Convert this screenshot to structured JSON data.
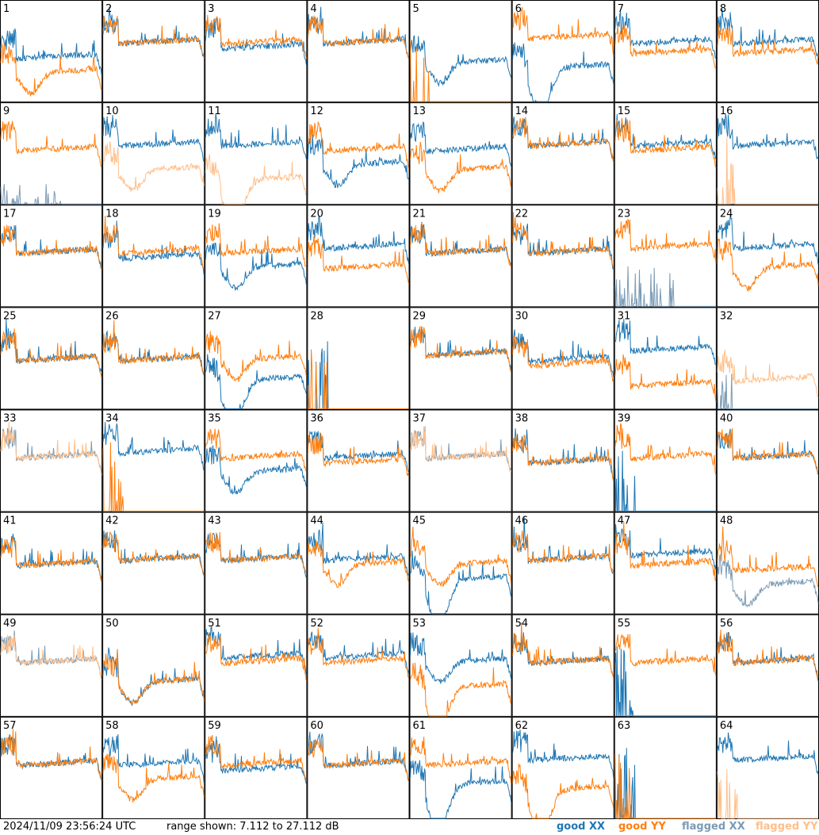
{
  "footer": {
    "timestamp": "2024/11/09 23:56:24 UTC",
    "range_text": "range shown: 7.112 to 27.112 dB"
  },
  "legend": [
    {
      "label": "good XX",
      "color": "#1f77b4"
    },
    {
      "label": "good YY",
      "color": "#ff7f0e"
    },
    {
      "label": "flagged XX",
      "color": "#7b9bb5"
    },
    {
      "label": "flagged YY",
      "color": "#ffbf8a"
    }
  ],
  "chart_data": {
    "type": "line",
    "title": "",
    "xlabel": "",
    "ylabel": "",
    "ylim": [
      7.112,
      27.112
    ],
    "unit": "dB",
    "grid": "8x8 small multiples",
    "series_names": [
      "good XX",
      "good YY",
      "flagged XX",
      "flagged YY"
    ],
    "panels": [
      {
        "id": "1",
        "xx": "good",
        "yy": "good",
        "xx_level": 16,
        "yy_level": 13,
        "xx_shape": "flat",
        "yy_shape": "dip"
      },
      {
        "id": "2",
        "xx": "good",
        "yy": "good",
        "xx_level": 19,
        "yy_level": 19,
        "xx_shape": "flat",
        "yy_shape": "flat"
      },
      {
        "id": "3",
        "xx": "good",
        "yy": "good",
        "xx_level": 18,
        "yy_level": 19,
        "xx_shape": "flat",
        "yy_shape": "flat"
      },
      {
        "id": "4",
        "xx": "good",
        "yy": "good",
        "xx_level": 19,
        "yy_level": 19,
        "xx_shape": "flat",
        "yy_shape": "flat"
      },
      {
        "id": "5",
        "xx": "good",
        "yy": "good",
        "xx_level": 15,
        "yy_level": 7.112,
        "xx_shape": "dip",
        "yy_shape": "dead"
      },
      {
        "id": "6",
        "xx": "good",
        "yy": "good",
        "xx_level": 14,
        "yy_level": 20,
        "xx_shape": "deepdip",
        "yy_shape": "flat"
      },
      {
        "id": "7",
        "xx": "good",
        "yy": "good",
        "xx_level": 19,
        "yy_level": 17,
        "xx_shape": "flat",
        "yy_shape": "flat"
      },
      {
        "id": "8",
        "xx": "good",
        "yy": "good",
        "xx_level": 19,
        "yy_level": 17,
        "xx_shape": "flat",
        "yy_shape": "flat"
      },
      {
        "id": "9",
        "xx": "flagged",
        "yy": "good",
        "xx_level": 7.112,
        "yy_level": 18,
        "xx_shape": "spiky",
        "yy_shape": "flat"
      },
      {
        "id": "10",
        "xx": "good",
        "yy": "flagged",
        "xx_level": 19,
        "yy_level": 14,
        "xx_shape": "flat",
        "yy_shape": "dip"
      },
      {
        "id": "11",
        "xx": "good",
        "yy": "flagged",
        "xx_level": 19,
        "yy_level": 12,
        "xx_shape": "flat",
        "yy_shape": "deepdip"
      },
      {
        "id": "12",
        "xx": "good",
        "yy": "good",
        "xx_level": 15,
        "yy_level": 18,
        "xx_shape": "dip",
        "yy_shape": "flat"
      },
      {
        "id": "13",
        "xx": "good",
        "yy": "good",
        "xx_level": 18,
        "yy_level": 14,
        "xx_shape": "flat",
        "yy_shape": "dip"
      },
      {
        "id": "14",
        "xx": "good",
        "yy": "good",
        "xx_level": 19,
        "yy_level": 19,
        "xx_shape": "flat",
        "yy_shape": "flat"
      },
      {
        "id": "15",
        "xx": "good",
        "yy": "good",
        "xx_level": 19,
        "yy_level": 18,
        "xx_shape": "flat",
        "yy_shape": "flat"
      },
      {
        "id": "16",
        "xx": "good",
        "yy": "flagged",
        "xx_level": 19,
        "yy_level": 7.112,
        "xx_shape": "flat",
        "yy_shape": "dead"
      },
      {
        "id": "17",
        "xx": "good",
        "yy": "good",
        "xx_level": 18,
        "yy_level": 18,
        "xx_shape": "flat",
        "yy_shape": "flat"
      },
      {
        "id": "18",
        "xx": "good",
        "yy": "good",
        "xx_level": 17,
        "yy_level": 18,
        "xx_shape": "flat",
        "yy_shape": "flat"
      },
      {
        "id": "19",
        "xx": "good",
        "yy": "good",
        "xx_level": 15,
        "yy_level": 18,
        "xx_shape": "dip",
        "yy_shape": "flat"
      },
      {
        "id": "20",
        "xx": "good",
        "yy": "good",
        "xx_level": 19,
        "yy_level": 15,
        "xx_shape": "flat",
        "yy_shape": "flat"
      },
      {
        "id": "21",
        "xx": "good",
        "yy": "good",
        "xx_level": 18,
        "yy_level": 18,
        "xx_shape": "flat",
        "yy_shape": "flat"
      },
      {
        "id": "22",
        "xx": "good",
        "yy": "good",
        "xx_level": 18,
        "yy_level": 18,
        "xx_shape": "flat",
        "yy_shape": "flat"
      },
      {
        "id": "23",
        "xx": "flagged",
        "yy": "good",
        "xx_level": 12,
        "yy_level": 19,
        "xx_shape": "spiky",
        "yy_shape": "flat"
      },
      {
        "id": "24",
        "xx": "good",
        "yy": "good",
        "xx_level": 19,
        "yy_level": 15,
        "xx_shape": "flat",
        "yy_shape": "dip"
      },
      {
        "id": "25",
        "xx": "good",
        "yy": "good",
        "xx_level": 17,
        "yy_level": 17,
        "xx_shape": "flat",
        "yy_shape": "flat"
      },
      {
        "id": "26",
        "xx": "good",
        "yy": "good",
        "xx_level": 17,
        "yy_level": 17,
        "xx_shape": "flat",
        "yy_shape": "flat"
      },
      {
        "id": "27",
        "xx": "good",
        "yy": "good",
        "xx_level": 13,
        "yy_level": 17,
        "xx_shape": "deepdip",
        "yy_shape": "dip"
      },
      {
        "id": "28",
        "xx": "good",
        "yy": "good",
        "xx_level": 7.112,
        "yy_level": 7.112,
        "xx_shape": "dead",
        "yy_shape": "dead"
      },
      {
        "id": "29",
        "xx": "good",
        "yy": "good",
        "xx_level": 18,
        "yy_level": 18,
        "xx_shape": "flat",
        "yy_shape": "flat"
      },
      {
        "id": "30",
        "xx": "good",
        "yy": "good",
        "xx_level": 17,
        "yy_level": 16,
        "xx_shape": "flat",
        "yy_shape": "flat"
      },
      {
        "id": "31",
        "xx": "good",
        "yy": "good",
        "xx_level": 19,
        "yy_level": 12,
        "xx_shape": "flat",
        "yy_shape": "flat"
      },
      {
        "id": "32",
        "xx": "flagged",
        "yy": "flagged",
        "xx_level": 7.112,
        "yy_level": 13,
        "xx_shape": "dead",
        "yy_shape": "flat"
      },
      {
        "id": "33",
        "xx": "flagged",
        "yy": "flagged",
        "xx_level": 18,
        "yy_level": 18,
        "xx_shape": "flat",
        "yy_shape": "flat"
      },
      {
        "id": "34",
        "xx": "good",
        "yy": "good",
        "xx_level": 19,
        "yy_level": 7.112,
        "xx_shape": "flat",
        "yy_shape": "dead"
      },
      {
        "id": "35",
        "xx": "good",
        "yy": "good",
        "xx_level": 15,
        "yy_level": 18,
        "xx_shape": "dip",
        "yy_shape": "flat"
      },
      {
        "id": "36",
        "xx": "good",
        "yy": "good",
        "xx_level": 18,
        "yy_level": 17,
        "xx_shape": "flat",
        "yy_shape": "flat"
      },
      {
        "id": "37",
        "xx": "flagged",
        "yy": "flagged",
        "xx_level": 18,
        "yy_level": 18,
        "xx_shape": "flat",
        "yy_shape": "flat"
      },
      {
        "id": "38",
        "xx": "good",
        "yy": "good",
        "xx_level": 17,
        "yy_level": 17,
        "xx_shape": "flat",
        "yy_shape": "flat"
      },
      {
        "id": "39",
        "xx": "good",
        "yy": "good",
        "xx_level": 7.112,
        "yy_level": 18,
        "xx_shape": "dead",
        "yy_shape": "flat"
      },
      {
        "id": "40",
        "xx": "good",
        "yy": "good",
        "xx_level": 18,
        "yy_level": 18,
        "xx_shape": "flat",
        "yy_shape": "flat"
      },
      {
        "id": "41",
        "xx": "good",
        "yy": "good",
        "xx_level": 17,
        "yy_level": 17,
        "xx_shape": "flat",
        "yy_shape": "flat"
      },
      {
        "id": "42",
        "xx": "good",
        "yy": "good",
        "xx_level": 18,
        "yy_level": 18,
        "xx_shape": "flat",
        "yy_shape": "flat"
      },
      {
        "id": "43",
        "xx": "good",
        "yy": "good",
        "xx_level": 18,
        "yy_level": 18,
        "xx_shape": "flat",
        "yy_shape": "flat"
      },
      {
        "id": "44",
        "xx": "good",
        "yy": "good",
        "xx_level": 18,
        "yy_level": 17,
        "xx_shape": "flat",
        "yy_shape": "dip"
      },
      {
        "id": "45",
        "xx": "good",
        "yy": "good",
        "xx_level": 14,
        "yy_level": 17,
        "xx_shape": "deepdip",
        "yy_shape": "dip"
      },
      {
        "id": "46",
        "xx": "good",
        "yy": "good",
        "xx_level": 18,
        "yy_level": 18,
        "xx_shape": "flat",
        "yy_shape": "flat"
      },
      {
        "id": "47",
        "xx": "good",
        "yy": "good",
        "xx_level": 19,
        "yy_level": 17,
        "xx_shape": "flat",
        "yy_shape": "flat"
      },
      {
        "id": "48",
        "xx": "flagged",
        "yy": "good",
        "xx_level": 13,
        "yy_level": 16,
        "xx_shape": "dip",
        "yy_shape": "flat"
      },
      {
        "id": "49",
        "xx": "flagged",
        "yy": "flagged",
        "xx_level": 18,
        "yy_level": 18,
        "xx_shape": "flat",
        "yy_shape": "flat"
      },
      {
        "id": "50",
        "xx": "good",
        "yy": "good",
        "xx_level": 14,
        "yy_level": 14,
        "xx_shape": "dip",
        "yy_shape": "dip"
      },
      {
        "id": "51",
        "xx": "good",
        "yy": "good",
        "xx_level": 19,
        "yy_level": 18,
        "xx_shape": "flat",
        "yy_shape": "flat"
      },
      {
        "id": "52",
        "xx": "good",
        "yy": "good",
        "xx_level": 19,
        "yy_level": 18,
        "xx_shape": "flat",
        "yy_shape": "flat"
      },
      {
        "id": "53",
        "xx": "good",
        "yy": "good",
        "xx_level": 18,
        "yy_level": 13,
        "xx_shape": "dip",
        "yy_shape": "deepdip"
      },
      {
        "id": "54",
        "xx": "good",
        "yy": "good",
        "xx_level": 18,
        "yy_level": 18,
        "xx_shape": "flat",
        "yy_shape": "flat"
      },
      {
        "id": "55",
        "xx": "good",
        "yy": "good",
        "xx_level": 7.112,
        "yy_level": 18,
        "xx_shape": "dead",
        "yy_shape": "flat"
      },
      {
        "id": "56",
        "xx": "good",
        "yy": "good",
        "xx_level": 18,
        "yy_level": 18,
        "xx_shape": "flat",
        "yy_shape": "flat"
      },
      {
        "id": "57",
        "xx": "good",
        "yy": "good",
        "xx_level": 18,
        "yy_level": 18,
        "xx_shape": "flat",
        "yy_shape": "flat"
      },
      {
        "id": "58",
        "xx": "good",
        "yy": "good",
        "xx_level": 18,
        "yy_level": 15,
        "xx_shape": "flat",
        "yy_shape": "dip"
      },
      {
        "id": "59",
        "xx": "good",
        "yy": "good",
        "xx_level": 17,
        "yy_level": 18,
        "xx_shape": "flat",
        "yy_shape": "flat"
      },
      {
        "id": "60",
        "xx": "good",
        "yy": "good",
        "xx_level": 18,
        "yy_level": 18,
        "xx_shape": "flat",
        "yy_shape": "flat"
      },
      {
        "id": "61",
        "xx": "good",
        "yy": "good",
        "xx_level": 14,
        "yy_level": 18,
        "xx_shape": "deepdip",
        "yy_shape": "flat"
      },
      {
        "id": "62",
        "xx": "good",
        "yy": "good",
        "xx_level": 19,
        "yy_level": 13,
        "xx_shape": "flat",
        "yy_shape": "deepdip"
      },
      {
        "id": "63",
        "xx": "good",
        "yy": "good",
        "xx_level": 7.112,
        "yy_level": 7.112,
        "xx_shape": "dead",
        "yy_shape": "dead"
      },
      {
        "id": "64",
        "xx": "good",
        "yy": "flagged",
        "xx_level": 19,
        "yy_level": 7.112,
        "xx_shape": "flat",
        "yy_shape": "dead"
      }
    ]
  }
}
